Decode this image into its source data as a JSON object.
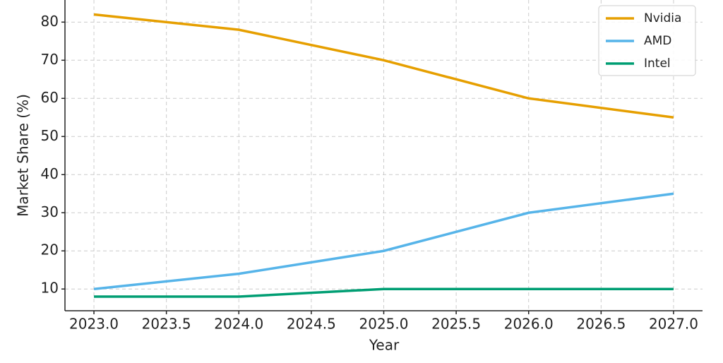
{
  "chart_data": {
    "type": "line",
    "x_label": "Year",
    "y_label": "Market Share (%)",
    "x": [
      2023,
      2024,
      2025,
      2026,
      2027
    ],
    "series": [
      {
        "name": "Nvidia",
        "color": "#e69f00",
        "values": [
          82,
          78,
          70,
          60,
          55
        ]
      },
      {
        "name": "AMD",
        "color": "#56b4e9",
        "values": [
          10,
          14,
          20,
          30,
          35
        ]
      },
      {
        "name": "Intel",
        "color": "#009e73",
        "values": [
          8,
          8,
          10,
          10,
          10
        ]
      }
    ],
    "xlim": [
      2022.8,
      2027.2
    ],
    "xticks": [
      {
        "value": 2023,
        "label": "2023.0"
      },
      2023.5,
      {
        "value": 2024,
        "label": "2024.0"
      },
      2024.5,
      {
        "value": 2025,
        "label": "2025.0"
      },
      2025.5,
      {
        "value": 2026,
        "label": "2026.0"
      },
      2026.5,
      {
        "value": 2027,
        "label": "2027.0"
      }
    ],
    "ylim": [
      4.3,
      85.8
    ],
    "yticks": [
      10,
      20,
      30,
      40,
      50,
      60,
      70,
      80
    ],
    "grid": true,
    "legend": "upper right"
  }
}
